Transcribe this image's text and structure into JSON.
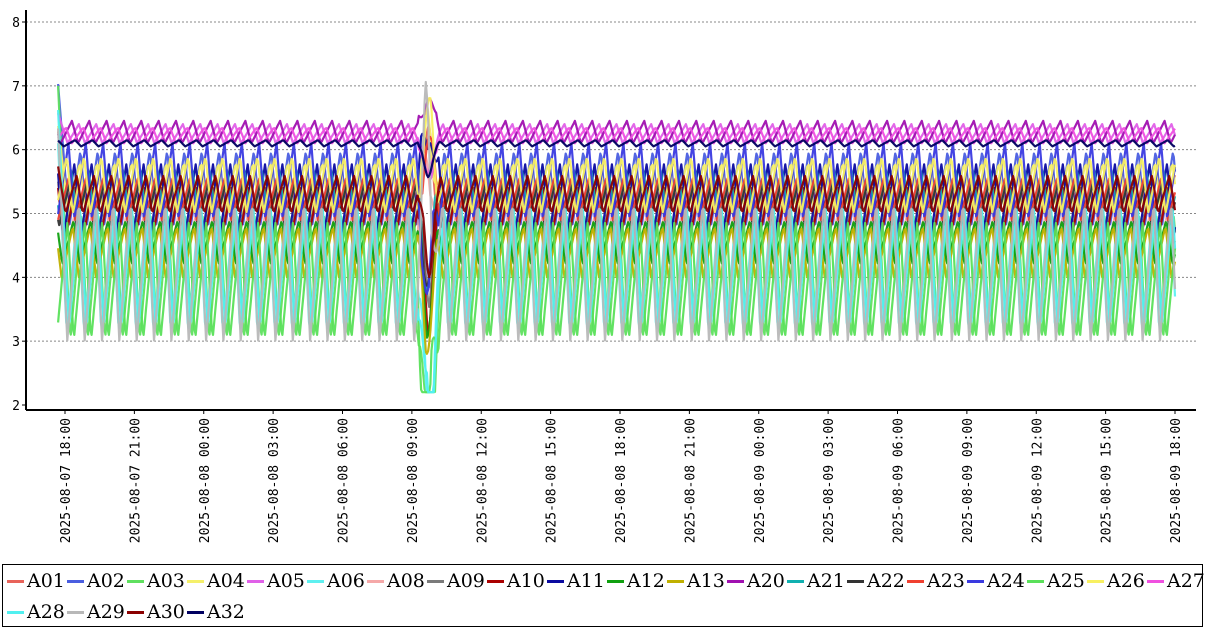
{
  "chart_data": {
    "type": "line",
    "title": "",
    "xlabel": "",
    "ylabel": "",
    "ylim": [
      2,
      8
    ],
    "yticks": [
      "2",
      "3",
      "4",
      "5",
      "6",
      "7",
      "8"
    ],
    "x_range_hours": [
      -1,
      48.4
    ],
    "xticks": [
      {
        "h": 0,
        "label": "2025-08-07  18:00"
      },
      {
        "h": 3,
        "label": "2025-08-07  21:00"
      },
      {
        "h": 6,
        "label": "2025-08-08  00:00"
      },
      {
        "h": 9,
        "label": "2025-08-08  03:00"
      },
      {
        "h": 12,
        "label": "2025-08-08  06:00"
      },
      {
        "h": 15,
        "label": "2025-08-08  09:00"
      },
      {
        "h": 18,
        "label": "2025-08-08  12:00"
      },
      {
        "h": 21,
        "label": "2025-08-08  15:00"
      },
      {
        "h": 24,
        "label": "2025-08-08  18:00"
      },
      {
        "h": 27,
        "label": "2025-08-08  21:00"
      },
      {
        "h": 30,
        "label": "2025-08-09  00:00"
      },
      {
        "h": 33,
        "label": "2025-08-09  03:00"
      },
      {
        "h": 36,
        "label": "2025-08-09  06:00"
      },
      {
        "h": 39,
        "label": "2025-08-09  09:00"
      },
      {
        "h": 42,
        "label": "2025-08-09  12:00"
      },
      {
        "h": 45,
        "label": "2025-08-09  15:00"
      },
      {
        "h": 48,
        "label": "2025-08-09  18:00"
      }
    ],
    "grid": "horizontal-dotted",
    "legend_position": "bottom",
    "cycle_hours": 0.75,
    "start_hour": -0.3,
    "end_hour": 48.0,
    "disturbance_hour": 15.6,
    "series": [
      {
        "name": "A01",
        "color": "#e8635a",
        "base_lo": 5.0,
        "base_hi": 5.6,
        "phase": 0.0
      },
      {
        "name": "A02",
        "color": "#4a5ee0",
        "base_lo": 4.8,
        "base_hi": 6.0,
        "phase": 0.1
      },
      {
        "name": "A03",
        "color": "#5fe05f",
        "base_lo": 3.0,
        "base_hi": 5.0,
        "phase": 0.05
      },
      {
        "name": "A04",
        "color": "#f5f06a",
        "base_lo": 5.0,
        "base_hi": 5.8,
        "phase": 0.15
      },
      {
        "name": "A05",
        "color": "#e060e8",
        "base_lo": 6.1,
        "base_hi": 6.4,
        "phase": 0.2
      },
      {
        "name": "A06",
        "color": "#5ef0f0",
        "base_lo": 3.1,
        "base_hi": 5.2,
        "phase": 0.25
      },
      {
        "name": "A08",
        "color": "#f5a8a8",
        "base_lo": 4.3,
        "base_hi": 5.2,
        "phase": 0.3
      },
      {
        "name": "A09",
        "color": "#7a7a7a",
        "base_lo": 4.7,
        "base_hi": 5.4,
        "phase": 0.35
      },
      {
        "name": "A10",
        "color": "#aa0000",
        "base_lo": 4.5,
        "base_hi": 5.4,
        "phase": 0.4
      },
      {
        "name": "A11",
        "color": "#0a0aa0",
        "base_lo": 4.6,
        "base_hi": 5.8,
        "phase": 0.45
      },
      {
        "name": "A12",
        "color": "#10a010",
        "base_lo": 4.2,
        "base_hi": 4.9,
        "phase": 0.5
      },
      {
        "name": "A13",
        "color": "#c0b000",
        "base_lo": 4.0,
        "base_hi": 4.8,
        "phase": 0.55
      },
      {
        "name": "A20",
        "color": "#a010b0",
        "base_lo": 6.1,
        "base_hi": 6.45,
        "phase": 0.6
      },
      {
        "name": "A21",
        "color": "#10b0b0",
        "base_lo": 4.9,
        "base_hi": 5.7,
        "phase": 0.65
      },
      {
        "name": "A22",
        "color": "#333333",
        "base_lo": 4.8,
        "base_hi": 5.5,
        "phase": 0.7
      },
      {
        "name": "A23",
        "color": "#f04030",
        "base_lo": 4.9,
        "base_hi": 5.6,
        "phase": 0.75
      },
      {
        "name": "A24",
        "color": "#3a3ae0",
        "base_lo": 4.9,
        "base_hi": 6.1,
        "phase": 0.8
      },
      {
        "name": "A25",
        "color": "#5ae05a",
        "base_lo": 3.0,
        "base_hi": 4.9,
        "phase": 0.85
      },
      {
        "name": "A26",
        "color": "#f8f060",
        "base_lo": 5.0,
        "base_hi": 5.9,
        "phase": 0.9
      },
      {
        "name": "A27",
        "color": "#f050e0",
        "base_lo": 6.1,
        "base_hi": 6.35,
        "phase": 0.95
      },
      {
        "name": "A28",
        "color": "#50f0f0",
        "base_lo": 3.2,
        "base_hi": 5.1,
        "phase": 0.12
      },
      {
        "name": "A29",
        "color": "#b8b8b8",
        "base_lo": 3.0,
        "base_hi": 5.2,
        "phase": 0.22
      },
      {
        "name": "A30",
        "color": "#8a0000",
        "base_lo": 5.0,
        "base_hi": 5.6,
        "phase": 0.32
      },
      {
        "name": "A32",
        "color": "#000060",
        "base_lo": 6.05,
        "base_hi": 6.15,
        "phase": 0.42
      }
    ]
  }
}
